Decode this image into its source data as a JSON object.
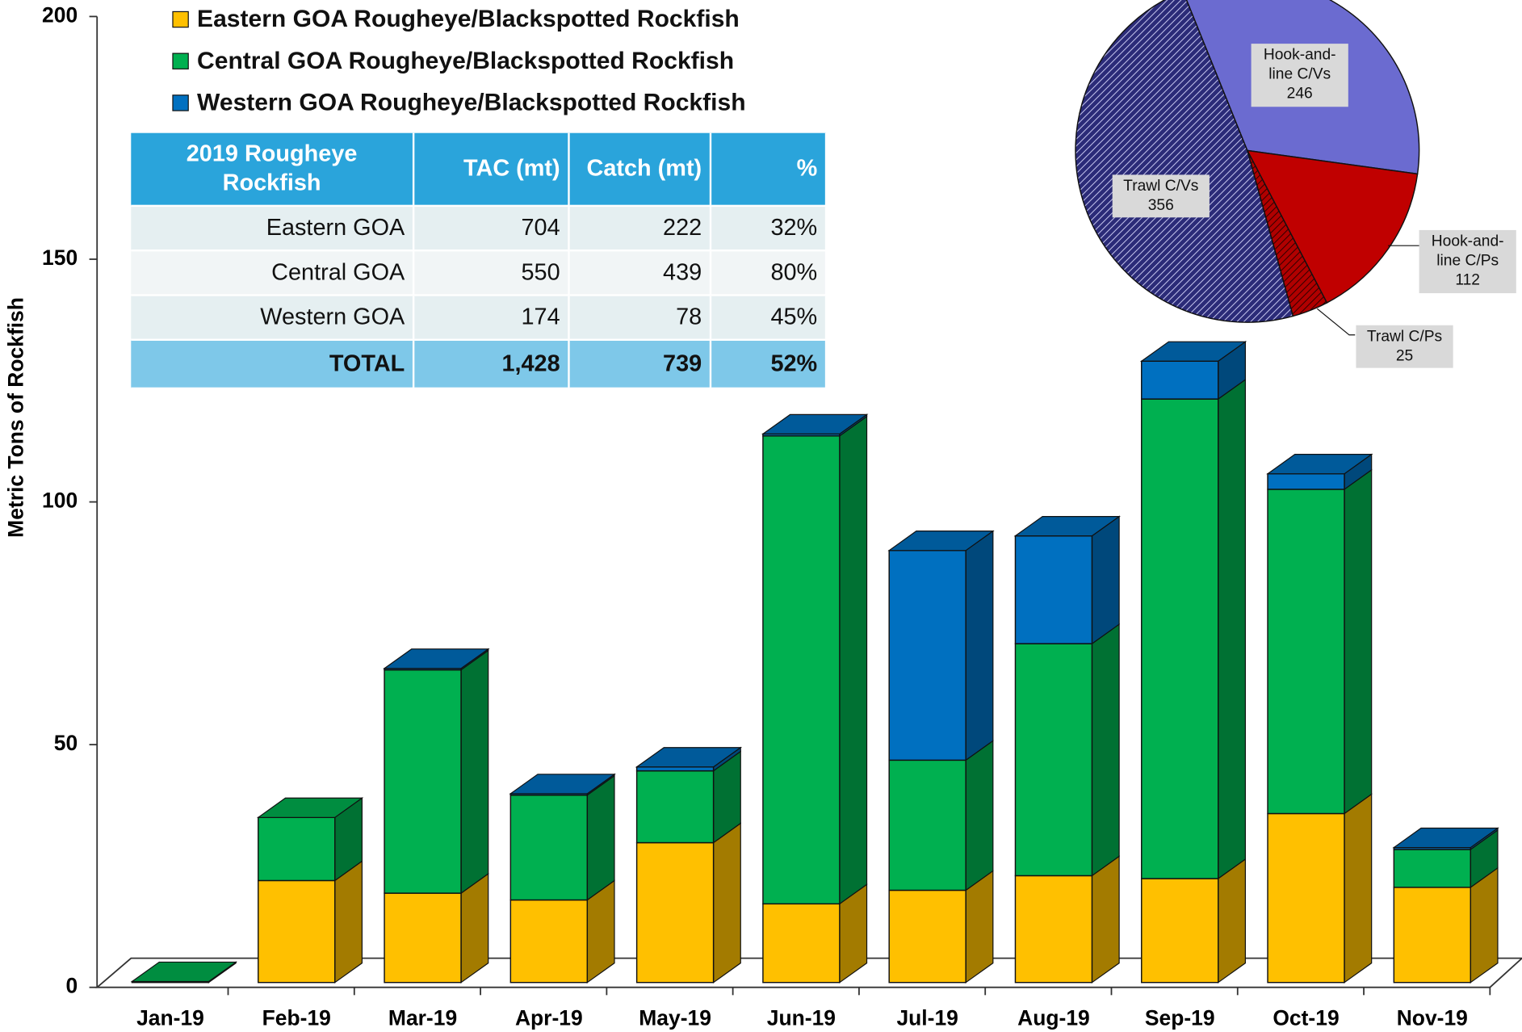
{
  "chart_data": [
    {
      "type": "bar3d_stacked",
      "ylabel": "Metric Tons of Rockfish",
      "categories": [
        "Jan-19",
        "Feb-19",
        "Mar-19",
        "Apr-19",
        "May-19",
        "Jun-19",
        "Jul-19",
        "Aug-19",
        "Sep-19",
        "Oct-19",
        "Nov-19"
      ],
      "series": [
        {
          "name": "Eastern GOA Rougheye/Blackspotted Rockfish",
          "color": "#ffc000",
          "values": [
            0,
            21,
            18.4,
            17,
            28.8,
            16.2,
            19,
            22,
            21.4,
            34.8,
            19.6
          ]
        },
        {
          "name": "Central GOA Rougheye/Blackspotted Rockfish",
          "color": "#00b050",
          "values": [
            0.2,
            13,
            46,
            21.6,
            14.8,
            96.4,
            26.8,
            47.8,
            98.8,
            66.8,
            7.8
          ]
        },
        {
          "name": "Western GOA Rougheye/Blackspotted Rockfish",
          "color": "#0070c0",
          "values": [
            0,
            0,
            0.3,
            0.3,
            0.8,
            0.4,
            43.2,
            22.2,
            7.8,
            3.2,
            0.4
          ]
        }
      ],
      "ylim": [
        0,
        200
      ],
      "yticks": [
        0,
        50,
        100,
        150,
        200
      ]
    },
    {
      "type": "pie",
      "labels": [
        [
          "Hook-and-",
          "line C/Vs"
        ],
        [
          "Hook-and-",
          "line C/Ps"
        ],
        [
          "Trawl C/Ps"
        ],
        [
          "Trawl C/Vs"
        ]
      ],
      "values": [
        246,
        112,
        25,
        356
      ],
      "colors": [
        "#6b6bd0",
        "#c00000",
        "#b00000",
        "#2b2b78"
      ]
    }
  ],
  "table": {
    "header": [
      "2019 Rougheye Rockfish",
      "TAC (mt)",
      "Catch (mt)",
      "%"
    ],
    "rows": [
      [
        "Eastern GOA",
        "704",
        "222",
        "32%"
      ],
      [
        "Central GOA",
        "550",
        "439",
        "80%"
      ],
      [
        "Western GOA",
        "174",
        "78",
        "45%"
      ]
    ],
    "total": [
      "TOTAL",
      "1,428",
      "739",
      "52%"
    ]
  }
}
